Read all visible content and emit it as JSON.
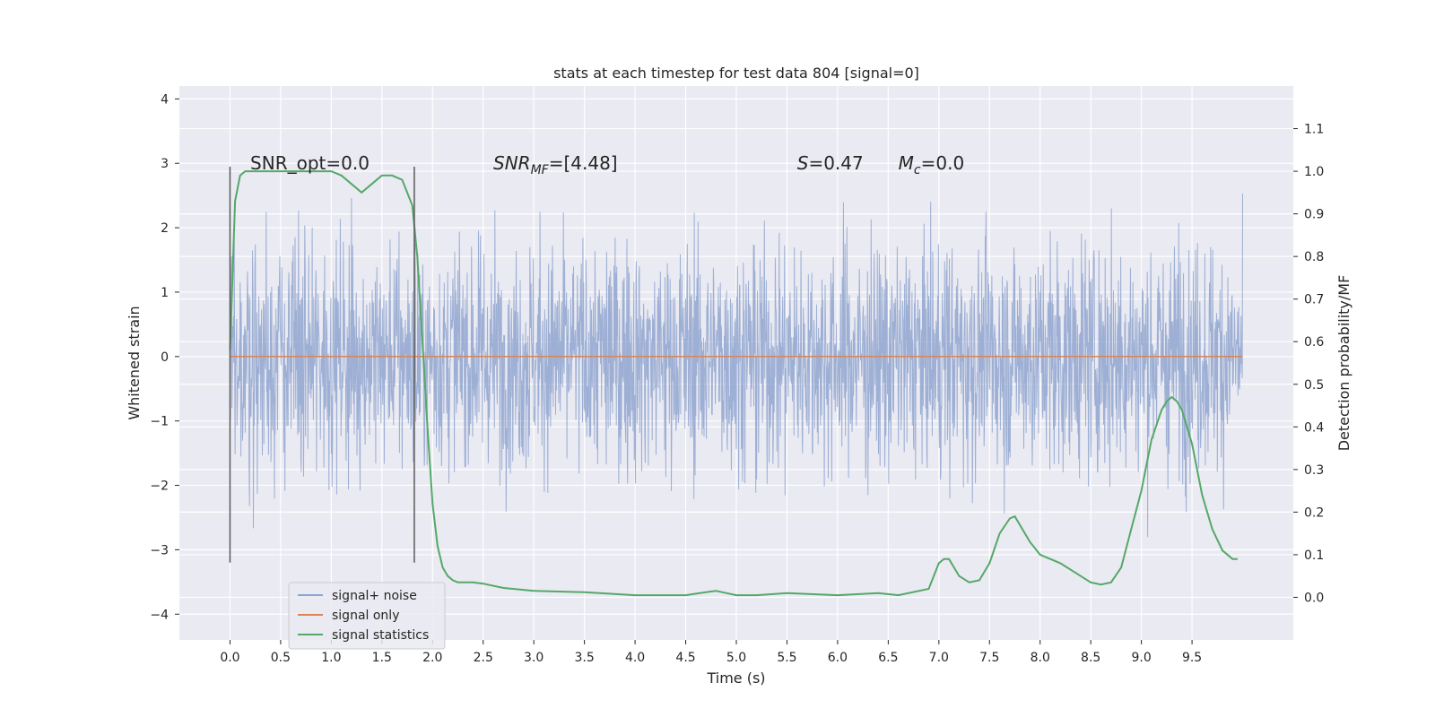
{
  "chart_data": {
    "type": "line",
    "title": "stats at each timestep for test data 804 [signal=0]",
    "xlabel": "Time (s)",
    "ylabel": "Whitened strain",
    "y2label": "Detection probability/MF",
    "xlim": [
      -0.5,
      10.5
    ],
    "ylim": [
      -4.4,
      4.2
    ],
    "y2lim": [
      -0.1,
      1.2
    ],
    "x_ticks": [
      "0.0",
      "0.5",
      "1.0",
      "1.5",
      "2.0",
      "2.5",
      "3.0",
      "3.5",
      "4.0",
      "4.5",
      "5.0",
      "5.5",
      "6.0",
      "6.5",
      "7.0",
      "7.5",
      "8.0",
      "8.5",
      "9.0",
      "9.5"
    ],
    "y_ticks": [
      "4",
      "3",
      "2",
      "1",
      "0",
      "−1",
      "−2",
      "−3",
      "−4"
    ],
    "y2_ticks": [
      "1.1",
      "1.0",
      "0.9",
      "0.8",
      "0.7",
      "0.6",
      "0.5",
      "0.4",
      "0.3",
      "0.2",
      "0.1",
      "0.0"
    ],
    "grid": true,
    "background": "#eaeaf2",
    "noise_range": [
      0.0,
      10.0
    ],
    "vlines": [
      0.0,
      1.82
    ],
    "vline_range": [
      -3.2,
      2.95
    ],
    "annotations": [
      {
        "text": "SNR_opt=0.0",
        "x": 0.2,
        "y": 3.0
      },
      {
        "text": "SNR",
        "sub": "MF",
        "suffix": "=[4.48]",
        "italic": true,
        "x": 2.6,
        "y": 3.0
      },
      {
        "text": "S",
        "suffix": "=0.47",
        "italic": true,
        "x": 5.6,
        "y": 3.0
      },
      {
        "text": "M",
        "sub": "c",
        "suffix": "=0.0",
        "italic": true,
        "x": 6.6,
        "y": 3.0
      }
    ],
    "series": [
      {
        "name": "signal+ noise",
        "color": "#8fa5cf",
        "axis": "left"
      },
      {
        "name": "signal only",
        "color": "#dd8452",
        "axis": "left",
        "x": [
          0.0,
          10.0
        ],
        "values": [
          0.0,
          0.0
        ]
      },
      {
        "name": "signal statistics",
        "color": "#55a868",
        "axis": "right",
        "x": [
          0.0,
          0.05,
          0.1,
          0.15,
          0.2,
          0.3,
          0.5,
          0.8,
          1.0,
          1.1,
          1.2,
          1.3,
          1.4,
          1.5,
          1.6,
          1.7,
          1.8,
          1.85,
          1.9,
          1.95,
          2.0,
          2.05,
          2.1,
          2.15,
          2.2,
          2.25,
          2.3,
          2.4,
          2.5,
          2.7,
          3.0,
          3.5,
          4.0,
          4.5,
          4.7,
          4.8,
          4.9,
          5.0,
          5.2,
          5.5,
          6.0,
          6.4,
          6.6,
          6.9,
          7.0,
          7.05,
          7.1,
          7.2,
          7.3,
          7.4,
          7.5,
          7.6,
          7.7,
          7.75,
          7.8,
          7.9,
          8.0,
          8.2,
          8.4,
          8.5,
          8.6,
          8.7,
          8.8,
          8.9,
          9.0,
          9.1,
          9.2,
          9.25,
          9.3,
          9.35,
          9.4,
          9.5,
          9.6,
          9.7,
          9.8,
          9.9,
          9.95
        ],
        "values": [
          0.58,
          0.93,
          0.99,
          1.0,
          1.0,
          1.0,
          1.0,
          1.0,
          1.0,
          0.99,
          0.97,
          0.95,
          0.97,
          0.99,
          0.99,
          0.98,
          0.92,
          0.8,
          0.6,
          0.4,
          0.22,
          0.12,
          0.07,
          0.05,
          0.04,
          0.035,
          0.035,
          0.035,
          0.032,
          0.022,
          0.015,
          0.012,
          0.005,
          0.005,
          0.012,
          0.015,
          0.01,
          0.005,
          0.005,
          0.01,
          0.005,
          0.01,
          0.005,
          0.02,
          0.08,
          0.09,
          0.09,
          0.05,
          0.035,
          0.04,
          0.08,
          0.15,
          0.185,
          0.19,
          0.17,
          0.13,
          0.1,
          0.08,
          0.05,
          0.035,
          0.03,
          0.035,
          0.07,
          0.16,
          0.25,
          0.37,
          0.44,
          0.46,
          0.47,
          0.46,
          0.44,
          0.36,
          0.24,
          0.16,
          0.11,
          0.09,
          0.09
        ]
      }
    ],
    "legend": {
      "position": "bottom-left",
      "entries": [
        "signal+ noise",
        "signal only",
        "signal statistics"
      ]
    }
  }
}
